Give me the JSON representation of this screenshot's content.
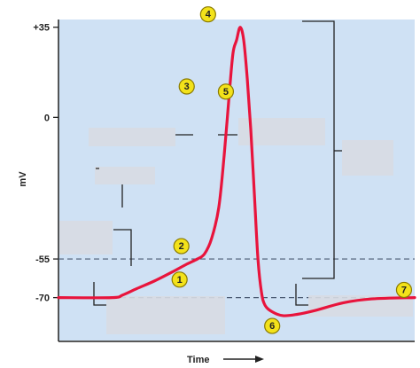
{
  "chart_data": {
    "type": "line",
    "xlabel": "Time",
    "ylabel": "mV",
    "y_ticks": [
      {
        "value": 35,
        "label": "+35"
      },
      {
        "value": 0,
        "label": "0"
      },
      {
        "value": -55,
        "label": "-55"
      },
      {
        "value": -70,
        "label": "-70"
      }
    ],
    "ylim": [
      -87,
      38
    ],
    "xlim": [
      0,
      100
    ],
    "reference_lines": [
      {
        "value": -55,
        "style": "dashed"
      },
      {
        "value": -70,
        "style": "dashed"
      }
    ],
    "series": [
      {
        "color": "#e8143c",
        "points": [
          [
            0,
            -70
          ],
          [
            15,
            -70
          ],
          [
            18,
            -69
          ],
          [
            22,
            -66.5
          ],
          [
            27,
            -63.5
          ],
          [
            32,
            -60
          ],
          [
            36,
            -57
          ],
          [
            39,
            -55
          ],
          [
            41,
            -53
          ],
          [
            43,
            -47
          ],
          [
            45,
            -35
          ],
          [
            46.5,
            -15
          ],
          [
            48,
            10
          ],
          [
            49,
            25
          ],
          [
            50,
            30
          ],
          [
            51,
            35
          ],
          [
            52,
            30
          ],
          [
            53,
            15
          ],
          [
            54,
            -5
          ],
          [
            55,
            -30
          ],
          [
            56,
            -55
          ],
          [
            57,
            -68
          ],
          [
            58,
            -73
          ],
          [
            60,
            -75.5
          ],
          [
            63,
            -77
          ],
          [
            67,
            -76.5
          ],
          [
            72,
            -75
          ],
          [
            80,
            -72
          ],
          [
            88,
            -70.5
          ],
          [
            100,
            -70
          ]
        ]
      }
    ],
    "markers": [
      {
        "label": "1",
        "x": 34,
        "y": -63
      },
      {
        "label": "2",
        "x": 34.5,
        "y": -50
      },
      {
        "label": "3",
        "x": 36,
        "y": 12
      },
      {
        "label": "4",
        "x": 42,
        "y": 40
      },
      {
        "label": "5",
        "x": 47,
        "y": 10
      },
      {
        "label": "6",
        "x": 60,
        "y": -81
      },
      {
        "label": "7",
        "x": 97,
        "y": -67
      }
    ]
  }
}
